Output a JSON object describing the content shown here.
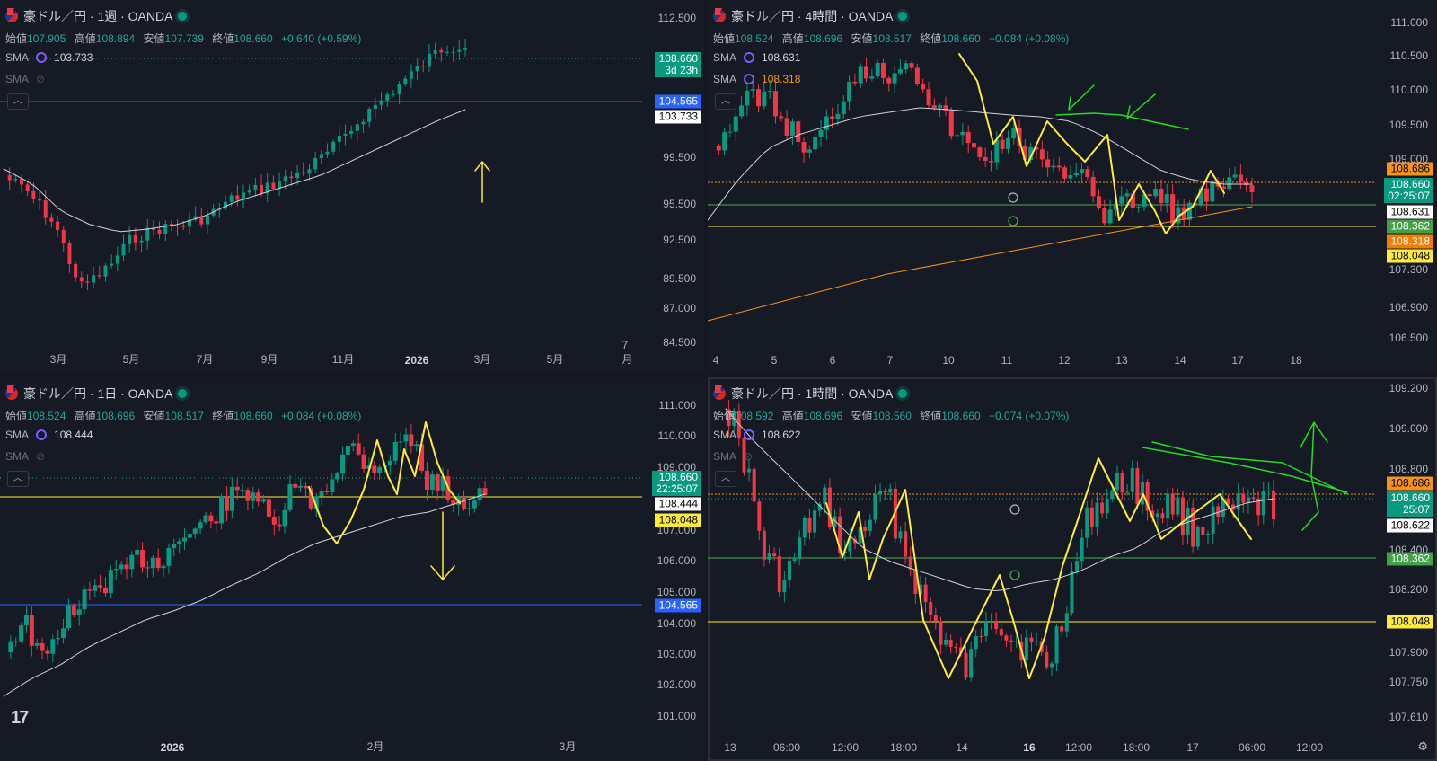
{
  "colors": {
    "up": "#089981",
    "down": "#f23645",
    "sma_white": "#d1d4dc",
    "sma_orange": "#f7931a",
    "yellow": "#ffeb3b",
    "green_line": "#4caf50",
    "blue_line": "#2962ff",
    "hand_green": "#22dd22"
  },
  "panes": [
    {
      "key": "weekly",
      "title": "豪ドル／円 · 1週 · OANDA",
      "ohlc": {
        "open_label": "始値",
        "open": "107.905",
        "high_label": "高値",
        "high": "108.894",
        "low_label": "安値",
        "low": "107.739",
        "close_label": "終値",
        "close": "108.660",
        "change": "+0.640 (+0.59%)"
      },
      "indicators": [
        {
          "name": "SMA",
          "value": "103.733",
          "visible": true
        },
        {
          "name": "SMA",
          "value": "",
          "visible": false
        }
      ],
      "price_ticks": [
        "112.500",
        "99.500",
        "95.500",
        "92.500",
        "89.500",
        "87.000",
        "84.500"
      ],
      "x_ticks": [
        "3月",
        "5月",
        "7月",
        "9月",
        "11月",
        "2026",
        "3月",
        "5月",
        "7月"
      ],
      "tags": [
        {
          "text": "108.660",
          "sub": "3d 23h",
          "bg": "#089981",
          "fg": "#ffffff"
        },
        {
          "text": "104.565",
          "bg": "#2962ff",
          "fg": "#ffffff"
        },
        {
          "text": "103.733",
          "bg": "#ffffff",
          "fg": "#000000"
        }
      ]
    },
    {
      "key": "h4",
      "title": "豪ドル／円 · 4時間 · OANDA",
      "ohlc": {
        "open_label": "始値",
        "open": "108.524",
        "high_label": "高値",
        "high": "108.696",
        "low_label": "安値",
        "low": "108.517",
        "close_label": "終値",
        "close": "108.660",
        "change": "+0.084 (+0.08%)"
      },
      "indicators": [
        {
          "name": "SMA",
          "value": "108.631",
          "visible": true
        },
        {
          "name": "SMA",
          "value": "108.318",
          "visible": true
        }
      ],
      "price_ticks": [
        "111.000",
        "110.500",
        "110.000",
        "109.500",
        "109.000",
        "107.300",
        "106.900",
        "106.500"
      ],
      "x_ticks": [
        "4",
        "5",
        "6",
        "7",
        "10",
        "11",
        "12",
        "13",
        "14",
        "17",
        "18"
      ],
      "tags": [
        {
          "text": "108.686",
          "bg": "#f7931a",
          "fg": "#000000"
        },
        {
          "text": "108.660",
          "sub": "02:25:07",
          "bg": "#089981",
          "fg": "#ffffff"
        },
        {
          "text": "108.631",
          "bg": "#ffffff",
          "fg": "#000000"
        },
        {
          "text": "108.362",
          "bg": "#43a047",
          "fg": "#ffffff"
        },
        {
          "text": "108.318",
          "bg": "#f57c00",
          "fg": "#ffffff"
        },
        {
          "text": "108.048",
          "bg": "#ffeb3b",
          "fg": "#000000"
        }
      ]
    },
    {
      "key": "daily",
      "title": "豪ドル／円 · 1日 · OANDA",
      "ohlc": {
        "open_label": "始値",
        "open": "108.524",
        "high_label": "高値",
        "high": "108.696",
        "low_label": "安値",
        "low": "108.517",
        "close_label": "終値",
        "close": "108.660",
        "change": "+0.084 (+0.08%)"
      },
      "indicators": [
        {
          "name": "SMA",
          "value": "108.444",
          "visible": true
        },
        {
          "name": "SMA",
          "value": "",
          "visible": false
        }
      ],
      "price_ticks": [
        "111.000",
        "110.000",
        "109.000",
        "107.000",
        "106.000",
        "105.000",
        "104.000",
        "103.000",
        "102.000",
        "101.000"
      ],
      "x_ticks": [
        "2026",
        "2月",
        "3月"
      ],
      "tags": [
        {
          "text": "108.660",
          "sub": "22:25:07",
          "bg": "#089981",
          "fg": "#ffffff"
        },
        {
          "text": "108.444",
          "bg": "#ffffff",
          "fg": "#000000"
        },
        {
          "text": "108.048",
          "bg": "#ffeb3b",
          "fg": "#000000"
        },
        {
          "text": "104.565",
          "bg": "#2962ff",
          "fg": "#ffffff"
        }
      ]
    },
    {
      "key": "h1",
      "title": "豪ドル／円 · 1時間 · OANDA",
      "ohlc": {
        "open_label": "始値",
        "open": "108.592",
        "high_label": "高値",
        "high": "108.696",
        "low_label": "安値",
        "low": "108.560",
        "close_label": "終値",
        "close": "108.660",
        "change": "+0.074 (+0.07%)"
      },
      "indicators": [
        {
          "name": "SMA",
          "value": "108.622",
          "visible": true
        },
        {
          "name": "SMA",
          "value": "",
          "visible": false
        }
      ],
      "price_ticks": [
        "109.200",
        "109.000",
        "108.800",
        "108.400",
        "108.200",
        "107.900",
        "107.750",
        "107.610"
      ],
      "x_ticks": [
        "13",
        "06:00",
        "12:00",
        "18:00",
        "14",
        "16",
        "12:00",
        "18:00",
        "17",
        "06:00",
        "12:00"
      ],
      "tags": [
        {
          "text": "108.686",
          "bg": "#f7931a",
          "fg": "#000000"
        },
        {
          "text": "108.660",
          "sub": "25:07",
          "bg": "#089981",
          "fg": "#ffffff"
        },
        {
          "text": "108.622",
          "bg": "#ffffff",
          "fg": "#000000"
        },
        {
          "text": "108.362",
          "bg": "#43a047",
          "fg": "#ffffff"
        },
        {
          "text": "108.048",
          "bg": "#ffeb3b",
          "fg": "#000000"
        }
      ]
    }
  ]
}
